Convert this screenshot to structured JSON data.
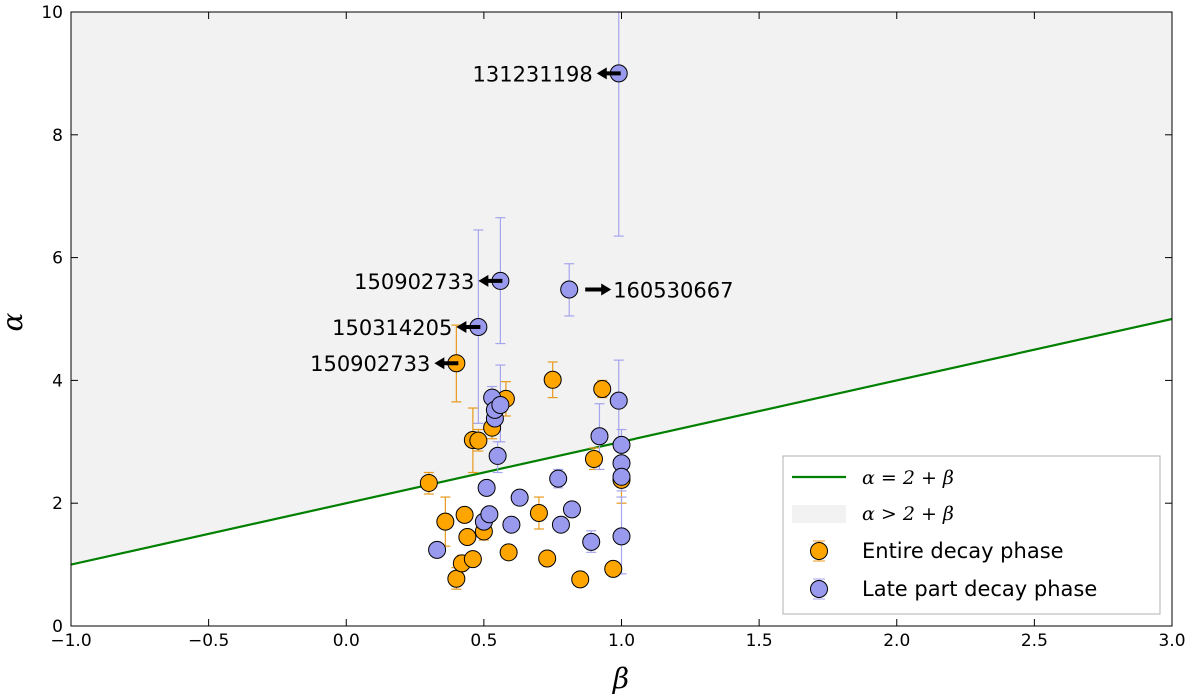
{
  "chart_data": {
    "type": "scatter",
    "xlabel": "β",
    "ylabel": "α",
    "xlim": [
      -1.0,
      3.0
    ],
    "ylim": [
      0,
      10
    ],
    "x_ticks": [
      "−1.0",
      "−0.5",
      "0.0",
      "0.5",
      "1.0",
      "1.5",
      "2.0",
      "2.5",
      "3.0"
    ],
    "y_ticks": [
      "0",
      "2",
      "4",
      "6",
      "8",
      "10"
    ],
    "grid": false,
    "legend_position": "bottom-right",
    "line": {
      "label": "α = 2 + β",
      "slope": 1,
      "intercept": 2,
      "color": "#008000"
    },
    "region": {
      "label": "α > 2 + β",
      "color": "#f2f2f2"
    },
    "series": [
      {
        "name": "Entire decay phase",
        "color": "#ffa500",
        "errcolor": "#e89a1c",
        "points": [
          {
            "x": 0.3,
            "y": 2.33,
            "lo": 2.15,
            "hi": 2.5
          },
          {
            "x": 0.36,
            "y": 1.7,
            "lo": 1.3,
            "hi": 2.1
          },
          {
            "x": 0.4,
            "y": 4.28,
            "lo": 3.65,
            "hi": 4.9
          },
          {
            "x": 0.4,
            "y": 0.77,
            "lo": 0.6,
            "hi": 0.95
          },
          {
            "x": 0.42,
            "y": 1.02,
            "lo": 0.9,
            "hi": 1.15
          },
          {
            "x": 0.43,
            "y": 1.81,
            "lo": 1.7,
            "hi": 1.92
          },
          {
            "x": 0.44,
            "y": 1.45,
            "lo": 1.35,
            "hi": 1.55
          },
          {
            "x": 0.46,
            "y": 1.09,
            "lo": 1.0,
            "hi": 1.18
          },
          {
            "x": 0.46,
            "y": 3.03,
            "lo": 2.5,
            "hi": 3.55
          },
          {
            "x": 0.48,
            "y": 3.02,
            "lo": 2.85,
            "hi": 3.2
          },
          {
            "x": 0.5,
            "y": 1.54,
            "lo": 1.4,
            "hi": 1.68
          },
          {
            "x": 0.53,
            "y": 3.23,
            "lo": 3.05,
            "hi": 3.4
          },
          {
            "x": 0.58,
            "y": 3.7,
            "lo": 3.42,
            "hi": 3.98
          },
          {
            "x": 0.59,
            "y": 1.2,
            "lo": 1.1,
            "hi": 1.3
          },
          {
            "x": 0.7,
            "y": 1.84,
            "lo": 1.58,
            "hi": 2.1
          },
          {
            "x": 0.73,
            "y": 1.1,
            "lo": 1.0,
            "hi": 1.2
          },
          {
            "x": 0.75,
            "y": 4.01,
            "lo": 3.72,
            "hi": 4.3
          },
          {
            "x": 0.85,
            "y": 0.76,
            "lo": 0.68,
            "hi": 0.84
          },
          {
            "x": 0.9,
            "y": 2.72,
            "lo": 2.55,
            "hi": 2.9
          },
          {
            "x": 0.93,
            "y": 3.86,
            "lo": 3.72,
            "hi": 4.0
          },
          {
            "x": 0.97,
            "y": 0.93,
            "lo": 0.85,
            "hi": 1.0
          },
          {
            "x": 1.0,
            "y": 2.38,
            "lo": 2.0,
            "hi": 2.75
          }
        ]
      },
      {
        "name": "Late part decay phase",
        "color": "#9999ee",
        "errcolor": "#a5a5ee",
        "points": [
          {
            "x": 0.33,
            "y": 1.24,
            "lo": 1.15,
            "hi": 1.33
          },
          {
            "x": 0.48,
            "y": 4.87,
            "lo": 3.3,
            "hi": 6.45
          },
          {
            "x": 0.5,
            "y": 1.7,
            "lo": 1.6,
            "hi": 1.8
          },
          {
            "x": 0.51,
            "y": 2.25,
            "lo": 2.15,
            "hi": 2.35
          },
          {
            "x": 0.52,
            "y": 1.82,
            "lo": 1.72,
            "hi": 1.92
          },
          {
            "x": 0.53,
            "y": 3.72,
            "lo": 3.55,
            "hi": 3.9
          },
          {
            "x": 0.54,
            "y": 3.38,
            "lo": 3.25,
            "hi": 3.5
          },
          {
            "x": 0.54,
            "y": 3.52,
            "lo": 3.38,
            "hi": 3.66
          },
          {
            "x": 0.55,
            "y": 2.77,
            "lo": 2.5,
            "hi": 3.0
          },
          {
            "x": 0.56,
            "y": 5.62,
            "lo": 4.6,
            "hi": 6.65
          },
          {
            "x": 0.56,
            "y": 3.6,
            "lo": 3.0,
            "hi": 4.25
          },
          {
            "x": 0.6,
            "y": 1.65,
            "lo": 1.55,
            "hi": 1.75
          },
          {
            "x": 0.63,
            "y": 2.09,
            "lo": 1.99,
            "hi": 2.19
          },
          {
            "x": 0.77,
            "y": 2.4,
            "lo": 2.25,
            "hi": 2.55
          },
          {
            "x": 0.78,
            "y": 1.65,
            "lo": 1.55,
            "hi": 1.75
          },
          {
            "x": 0.81,
            "y": 5.48,
            "lo": 5.05,
            "hi": 5.9
          },
          {
            "x": 0.82,
            "y": 1.9,
            "lo": 1.8,
            "hi": 2.0
          },
          {
            "x": 0.89,
            "y": 1.37,
            "lo": 1.2,
            "hi": 1.55
          },
          {
            "x": 0.92,
            "y": 3.09,
            "lo": 2.55,
            "hi": 3.62
          },
          {
            "x": 0.99,
            "y": 9.0,
            "lo": 6.35,
            "hi": 11.0
          },
          {
            "x": 0.99,
            "y": 3.67,
            "lo": 3.0,
            "hi": 4.33
          },
          {
            "x": 1.0,
            "y": 2.95,
            "lo": 2.7,
            "hi": 3.2
          },
          {
            "x": 1.0,
            "y": 2.65,
            "lo": 2.4,
            "hi": 2.9
          },
          {
            "x": 1.0,
            "y": 2.43,
            "lo": 2.2,
            "hi": 2.65
          },
          {
            "x": 1.0,
            "y": 1.46,
            "lo": 0.85,
            "hi": 2.1
          }
        ]
      }
    ],
    "annotations": [
      {
        "text": "131231198",
        "x": 0.99,
        "y": 9.0,
        "side": "left"
      },
      {
        "text": "150902733",
        "x": 0.56,
        "y": 5.62,
        "side": "left"
      },
      {
        "text": "160530667",
        "x": 0.81,
        "y": 5.48,
        "side": "right"
      },
      {
        "text": "150314205",
        "x": 0.48,
        "y": 4.87,
        "side": "left"
      },
      {
        "text": "150902733",
        "x": 0.4,
        "y": 4.28,
        "side": "left"
      }
    ]
  }
}
